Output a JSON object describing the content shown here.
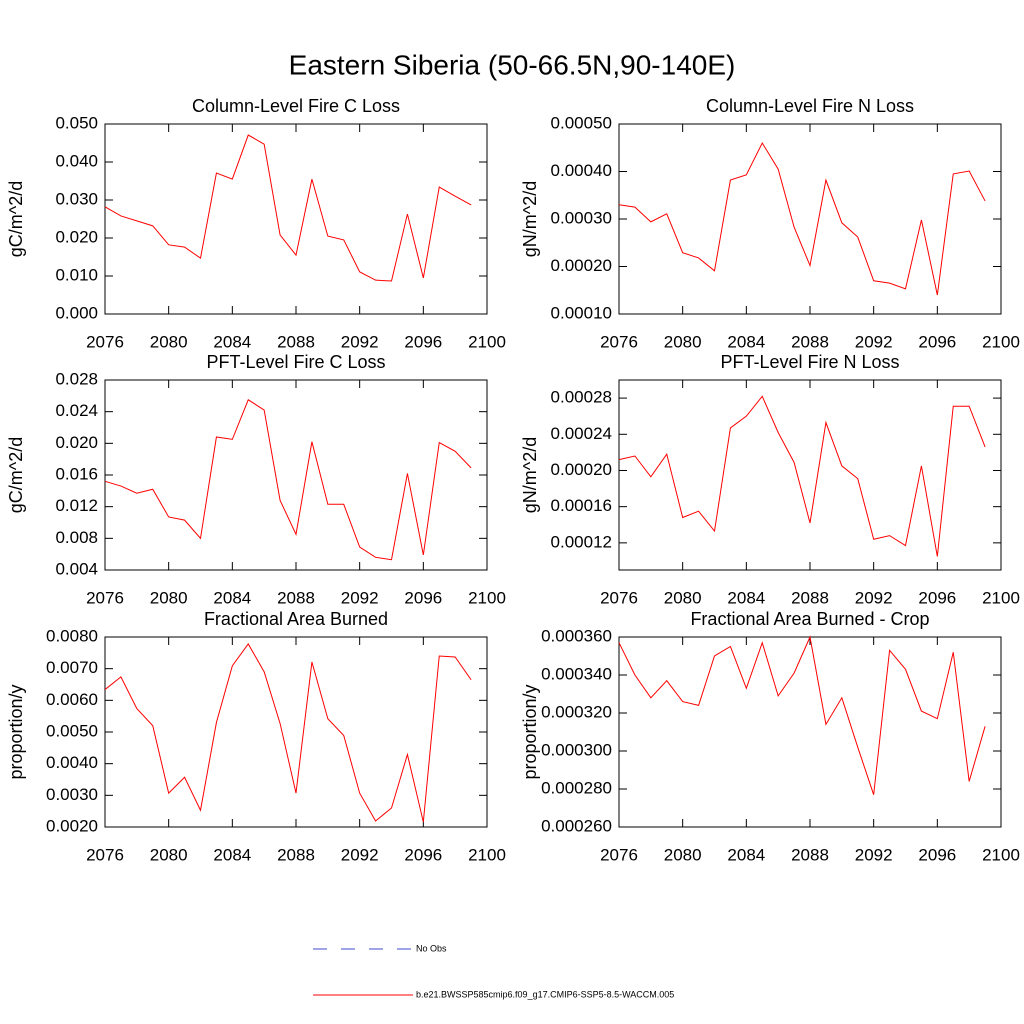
{
  "title": "Eastern Siberia (50-66.5N,90-140E)",
  "legend": [
    {
      "name": "No Obs",
      "color": "#3f48cc",
      "dash": true
    },
    {
      "name": "b.e21.BWSSP585cmip6.f09_g17.CMIP6-SSP5-8.5-WACCM.005",
      "color": "#ff0000",
      "dash": false
    }
  ],
  "chart_data": [
    {
      "type": "line",
      "title": "Column-Level Fire C Loss",
      "y_label": "gC/m^2/d",
      "color": "#ff0000",
      "x": [
        2076,
        2077,
        2078,
        2079,
        2080,
        2081,
        2082,
        2083,
        2084,
        2085,
        2086,
        2087,
        2088,
        2089,
        2090,
        2091,
        2092,
        2093,
        2094,
        2095,
        2096,
        2097,
        2098,
        2099
      ],
      "values": [
        0.0282,
        0.0258,
        0.0245,
        0.0232,
        0.0182,
        0.0176,
        0.0147,
        0.0371,
        0.0355,
        0.0471,
        0.0447,
        0.0208,
        0.0155,
        0.0355,
        0.0205,
        0.0195,
        0.0111,
        0.0089,
        0.0087,
        0.0263,
        0.0095,
        0.0334,
        0.031,
        0.0287
      ],
      "xlim": [
        2076,
        2100
      ],
      "xticks": [
        2076,
        2080,
        2084,
        2088,
        2092,
        2096,
        2100
      ],
      "ylim": [
        0,
        0.05
      ],
      "yticks": [
        {
          "value": 0,
          "label": "0.000"
        },
        {
          "value": 0.01,
          "label": "0.010"
        },
        {
          "value": 0.02,
          "label": "0.020"
        },
        {
          "value": 0.03,
          "label": "0.030"
        },
        {
          "value": 0.04,
          "label": "0.040"
        },
        {
          "value": 0.05,
          "label": "0.050"
        }
      ]
    },
    {
      "type": "line",
      "title": "Column-Level Fire N Loss",
      "y_label": "gN/m^2/d",
      "color": "#ff0000",
      "x": [
        2076,
        2077,
        2078,
        2079,
        2080,
        2081,
        2082,
        2083,
        2084,
        2085,
        2086,
        2087,
        2088,
        2089,
        2090,
        2091,
        2092,
        2093,
        2094,
        2095,
        2096,
        2097,
        2098,
        2099
      ],
      "values": [
        0.00033,
        0.000325,
        0.000294,
        0.000311,
        0.000229,
        0.000218,
        0.000191,
        0.000382,
        0.000393,
        0.00046,
        0.000405,
        0.000283,
        0.000202,
        0.000382,
        0.000292,
        0.000262,
        0.00017,
        0.000165,
        0.000153,
        0.000298,
        0.00014,
        0.000395,
        0.000401,
        0.000338
      ],
      "xlim": [
        2076,
        2100
      ],
      "xticks": [
        2076,
        2080,
        2084,
        2088,
        2092,
        2096,
        2100
      ],
      "ylim": [
        0.0001,
        0.0005
      ],
      "yticks": [
        {
          "value": 0.0001,
          "label": "0.00010"
        },
        {
          "value": 0.0002,
          "label": "0.00020"
        },
        {
          "value": 0.0003,
          "label": "0.00030"
        },
        {
          "value": 0.0004,
          "label": "0.00040"
        },
        {
          "value": 0.0005,
          "label": "0.00050"
        }
      ]
    },
    {
      "type": "line",
      "title": "PFT-Level Fire C Loss",
      "y_label": "gC/m^2/d",
      "color": "#ff0000",
      "x": [
        2076,
        2077,
        2078,
        2079,
        2080,
        2081,
        2082,
        2083,
        2084,
        2085,
        2086,
        2087,
        2088,
        2089,
        2090,
        2091,
        2092,
        2093,
        2094,
        2095,
        2096,
        2097,
        2098,
        2099
      ],
      "values": [
        0.0152,
        0.0146,
        0.0137,
        0.0142,
        0.0107,
        0.0103,
        0.008,
        0.0208,
        0.0205,
        0.0255,
        0.0242,
        0.0128,
        0.0085,
        0.0202,
        0.0123,
        0.0123,
        0.0069,
        0.0056,
        0.0053,
        0.0162,
        0.0059,
        0.0201,
        0.019,
        0.0169
      ],
      "xlim": [
        2076,
        2100
      ],
      "xticks": [
        2076,
        2080,
        2084,
        2088,
        2092,
        2096,
        2100
      ],
      "ylim": [
        0.004,
        0.028
      ],
      "yticks": [
        0.004,
        0.008,
        0.012,
        0.016,
        {
          "value": 0.02,
          "label": "0.020"
        },
        0.024,
        0.028
      ]
    },
    {
      "type": "line",
      "title": "PFT-Level Fire N Loss",
      "y_label": "gN/m^2/d",
      "color": "#ff0000",
      "x": [
        2076,
        2077,
        2078,
        2079,
        2080,
        2081,
        2082,
        2083,
        2084,
        2085,
        2086,
        2087,
        2088,
        2089,
        2090,
        2091,
        2092,
        2093,
        2094,
        2095,
        2096,
        2097,
        2098,
        2099
      ],
      "values": [
        0.000212,
        0.000216,
        0.000193,
        0.000218,
        0.000148,
        0.000155,
        0.000133,
        0.000247,
        0.00026,
        0.000282,
        0.000242,
        0.000209,
        0.000142,
        0.000253,
        0.000205,
        0.000191,
        0.000124,
        0.000128,
        0.000117,
        0.000205,
        0.000105,
        0.000271,
        0.000271,
        0.000226
      ],
      "xlim": [
        2076,
        2100
      ],
      "xticks": [
        2076,
        2080,
        2084,
        2088,
        2092,
        2096,
        2100
      ],
      "ylim": [
        9e-05,
        0.0003
      ],
      "yticks": [
        0.00012,
        0.00016,
        {
          "value": 0.0002,
          "label": "0.00020"
        },
        0.00024,
        0.00028
      ]
    },
    {
      "type": "line",
      "title": "Fractional Area Burned",
      "y_label": "proportion/y",
      "color": "#ff0000",
      "x": [
        2076,
        2077,
        2078,
        2079,
        2080,
        2081,
        2082,
        2083,
        2084,
        2085,
        2086,
        2087,
        2088,
        2089,
        2090,
        2091,
        2092,
        2093,
        2094,
        2095,
        2096,
        2097,
        2098,
        2099
      ],
      "values": [
        0.00634,
        0.00674,
        0.00574,
        0.0052,
        0.00307,
        0.00357,
        0.00253,
        0.0053,
        0.00709,
        0.00778,
        0.0069,
        0.00527,
        0.00307,
        0.00721,
        0.00542,
        0.00489,
        0.00307,
        0.00219,
        0.0026,
        0.00429,
        0.00216,
        0.0074,
        0.00737,
        0.00665
      ],
      "xlim": [
        2076,
        2100
      ],
      "xticks": [
        2076,
        2080,
        2084,
        2088,
        2092,
        2096,
        2100
      ],
      "ylim": [
        0.002,
        0.008
      ],
      "yticks": [
        {
          "value": 0.002,
          "label": "0.0020"
        },
        {
          "value": 0.003,
          "label": "0.0030"
        },
        {
          "value": 0.004,
          "label": "0.0040"
        },
        {
          "value": 0.005,
          "label": "0.0050"
        },
        {
          "value": 0.006,
          "label": "0.0060"
        },
        {
          "value": 0.007,
          "label": "0.0070"
        },
        {
          "value": 0.008,
          "label": "0.0080"
        }
      ]
    },
    {
      "type": "line",
      "title": "Fractional Area Burned - Crop",
      "y_label": "proportion/y",
      "color": "#ff0000",
      "x": [
        2076,
        2077,
        2078,
        2079,
        2080,
        2081,
        2082,
        2083,
        2084,
        2085,
        2086,
        2087,
        2088,
        2089,
        2090,
        2091,
        2092,
        2093,
        2094,
        2095,
        2096,
        2097,
        2098,
        2099
      ],
      "values": [
        0.000357,
        0.00034,
        0.000328,
        0.000337,
        0.000326,
        0.000324,
        0.00035,
        0.000355,
        0.000333,
        0.000357,
        0.000329,
        0.000341,
        0.00036,
        0.000314,
        0.000328,
        0.000302,
        0.000277,
        0.000353,
        0.000343,
        0.000321,
        0.000317,
        0.000352,
        0.000284,
        0.000313
      ],
      "xlim": [
        2076,
        2100
      ],
      "xticks": [
        2076,
        2080,
        2084,
        2088,
        2092,
        2096,
        2100
      ],
      "ylim": [
        0.00026,
        0.00036
      ],
      "yticks": [
        {
          "value": 0.00026,
          "label": "0.000260"
        },
        {
          "value": 0.00028,
          "label": "0.000280"
        },
        {
          "value": 0.0003,
          "label": "0.000300"
        },
        {
          "value": 0.00032,
          "label": "0.000320"
        },
        {
          "value": 0.00034,
          "label": "0.000340"
        },
        {
          "value": 0.00036,
          "label": "0.000360"
        }
      ]
    }
  ]
}
